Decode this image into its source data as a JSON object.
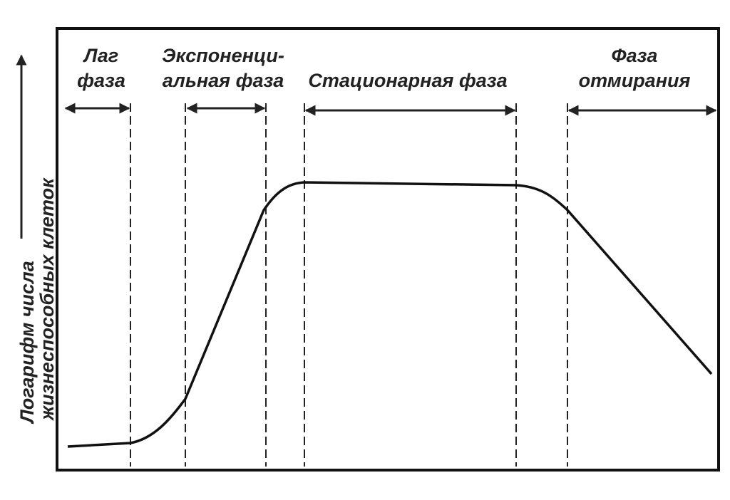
{
  "axis": {
    "y_label": [
      "Логарифм числа",
      "жизнеспособных клеток"
    ]
  },
  "phases": [
    {
      "label": [
        "Лаг",
        "фаза"
      ]
    },
    {
      "label": [
        "Экспоненци-",
        "альная фаза"
      ]
    },
    {
      "label": [
        "Стационарная фаза"
      ]
    },
    {
      "label": [
        "Фаза",
        "отмирания"
      ]
    }
  ]
}
